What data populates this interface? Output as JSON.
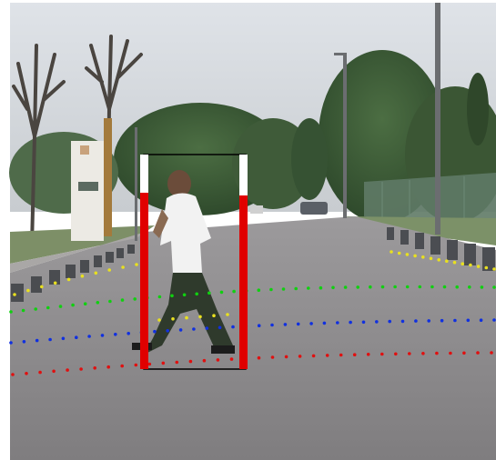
{
  "detection": {
    "confidence_left": 0.82,
    "confidence_right": 0.81,
    "bar_fill_color": "#e00000",
    "bar_empty_color": "#ffffff",
    "box_color": "#000000"
  },
  "point_tracks": [
    {
      "color": "#e01010"
    },
    {
      "color": "#1030e0"
    },
    {
      "color": "#10d010"
    },
    {
      "color": "#e8e020"
    }
  ]
}
